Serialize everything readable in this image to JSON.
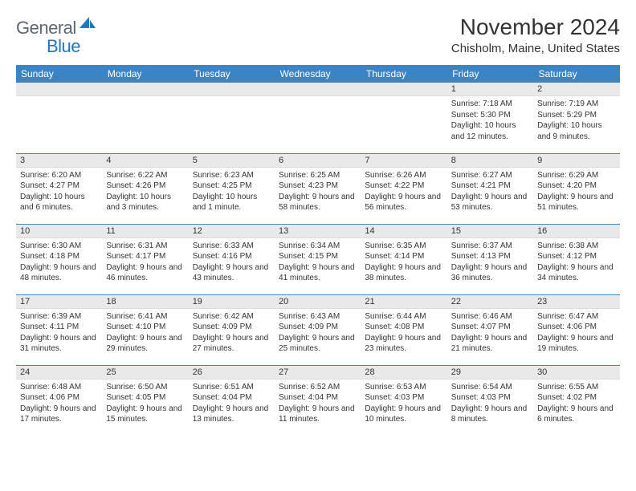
{
  "logo": {
    "text1": "General",
    "text2": "Blue"
  },
  "title": "November 2024",
  "location": "Chisholm, Maine, United States",
  "colors": {
    "header_bg": "#3b84c4",
    "header_text": "#ffffff",
    "daynum_bg": "#e9e9e9",
    "border": "#3b84c4",
    "logo_gray": "#5a6770",
    "logo_blue": "#2176bd"
  },
  "weekdays": [
    "Sunday",
    "Monday",
    "Tuesday",
    "Wednesday",
    "Thursday",
    "Friday",
    "Saturday"
  ],
  "weeks": [
    [
      {
        "day": "",
        "sunrise": "",
        "sunset": "",
        "daylight": ""
      },
      {
        "day": "",
        "sunrise": "",
        "sunset": "",
        "daylight": ""
      },
      {
        "day": "",
        "sunrise": "",
        "sunset": "",
        "daylight": ""
      },
      {
        "day": "",
        "sunrise": "",
        "sunset": "",
        "daylight": ""
      },
      {
        "day": "",
        "sunrise": "",
        "sunset": "",
        "daylight": ""
      },
      {
        "day": "1",
        "sunrise": "Sunrise: 7:18 AM",
        "sunset": "Sunset: 5:30 PM",
        "daylight": "Daylight: 10 hours and 12 minutes."
      },
      {
        "day": "2",
        "sunrise": "Sunrise: 7:19 AM",
        "sunset": "Sunset: 5:29 PM",
        "daylight": "Daylight: 10 hours and 9 minutes."
      }
    ],
    [
      {
        "day": "3",
        "sunrise": "Sunrise: 6:20 AM",
        "sunset": "Sunset: 4:27 PM",
        "daylight": "Daylight: 10 hours and 6 minutes."
      },
      {
        "day": "4",
        "sunrise": "Sunrise: 6:22 AM",
        "sunset": "Sunset: 4:26 PM",
        "daylight": "Daylight: 10 hours and 3 minutes."
      },
      {
        "day": "5",
        "sunrise": "Sunrise: 6:23 AM",
        "sunset": "Sunset: 4:25 PM",
        "daylight": "Daylight: 10 hours and 1 minute."
      },
      {
        "day": "6",
        "sunrise": "Sunrise: 6:25 AM",
        "sunset": "Sunset: 4:23 PM",
        "daylight": "Daylight: 9 hours and 58 minutes."
      },
      {
        "day": "7",
        "sunrise": "Sunrise: 6:26 AM",
        "sunset": "Sunset: 4:22 PM",
        "daylight": "Daylight: 9 hours and 56 minutes."
      },
      {
        "day": "8",
        "sunrise": "Sunrise: 6:27 AM",
        "sunset": "Sunset: 4:21 PM",
        "daylight": "Daylight: 9 hours and 53 minutes."
      },
      {
        "day": "9",
        "sunrise": "Sunrise: 6:29 AM",
        "sunset": "Sunset: 4:20 PM",
        "daylight": "Daylight: 9 hours and 51 minutes."
      }
    ],
    [
      {
        "day": "10",
        "sunrise": "Sunrise: 6:30 AM",
        "sunset": "Sunset: 4:18 PM",
        "daylight": "Daylight: 9 hours and 48 minutes."
      },
      {
        "day": "11",
        "sunrise": "Sunrise: 6:31 AM",
        "sunset": "Sunset: 4:17 PM",
        "daylight": "Daylight: 9 hours and 46 minutes."
      },
      {
        "day": "12",
        "sunrise": "Sunrise: 6:33 AM",
        "sunset": "Sunset: 4:16 PM",
        "daylight": "Daylight: 9 hours and 43 minutes."
      },
      {
        "day": "13",
        "sunrise": "Sunrise: 6:34 AM",
        "sunset": "Sunset: 4:15 PM",
        "daylight": "Daylight: 9 hours and 41 minutes."
      },
      {
        "day": "14",
        "sunrise": "Sunrise: 6:35 AM",
        "sunset": "Sunset: 4:14 PM",
        "daylight": "Daylight: 9 hours and 38 minutes."
      },
      {
        "day": "15",
        "sunrise": "Sunrise: 6:37 AM",
        "sunset": "Sunset: 4:13 PM",
        "daylight": "Daylight: 9 hours and 36 minutes."
      },
      {
        "day": "16",
        "sunrise": "Sunrise: 6:38 AM",
        "sunset": "Sunset: 4:12 PM",
        "daylight": "Daylight: 9 hours and 34 minutes."
      }
    ],
    [
      {
        "day": "17",
        "sunrise": "Sunrise: 6:39 AM",
        "sunset": "Sunset: 4:11 PM",
        "daylight": "Daylight: 9 hours and 31 minutes."
      },
      {
        "day": "18",
        "sunrise": "Sunrise: 6:41 AM",
        "sunset": "Sunset: 4:10 PM",
        "daylight": "Daylight: 9 hours and 29 minutes."
      },
      {
        "day": "19",
        "sunrise": "Sunrise: 6:42 AM",
        "sunset": "Sunset: 4:09 PM",
        "daylight": "Daylight: 9 hours and 27 minutes."
      },
      {
        "day": "20",
        "sunrise": "Sunrise: 6:43 AM",
        "sunset": "Sunset: 4:09 PM",
        "daylight": "Daylight: 9 hours and 25 minutes."
      },
      {
        "day": "21",
        "sunrise": "Sunrise: 6:44 AM",
        "sunset": "Sunset: 4:08 PM",
        "daylight": "Daylight: 9 hours and 23 minutes."
      },
      {
        "day": "22",
        "sunrise": "Sunrise: 6:46 AM",
        "sunset": "Sunset: 4:07 PM",
        "daylight": "Daylight: 9 hours and 21 minutes."
      },
      {
        "day": "23",
        "sunrise": "Sunrise: 6:47 AM",
        "sunset": "Sunset: 4:06 PM",
        "daylight": "Daylight: 9 hours and 19 minutes."
      }
    ],
    [
      {
        "day": "24",
        "sunrise": "Sunrise: 6:48 AM",
        "sunset": "Sunset: 4:06 PM",
        "daylight": "Daylight: 9 hours and 17 minutes."
      },
      {
        "day": "25",
        "sunrise": "Sunrise: 6:50 AM",
        "sunset": "Sunset: 4:05 PM",
        "daylight": "Daylight: 9 hours and 15 minutes."
      },
      {
        "day": "26",
        "sunrise": "Sunrise: 6:51 AM",
        "sunset": "Sunset: 4:04 PM",
        "daylight": "Daylight: 9 hours and 13 minutes."
      },
      {
        "day": "27",
        "sunrise": "Sunrise: 6:52 AM",
        "sunset": "Sunset: 4:04 PM",
        "daylight": "Daylight: 9 hours and 11 minutes."
      },
      {
        "day": "28",
        "sunrise": "Sunrise: 6:53 AM",
        "sunset": "Sunset: 4:03 PM",
        "daylight": "Daylight: 9 hours and 10 minutes."
      },
      {
        "day": "29",
        "sunrise": "Sunrise: 6:54 AM",
        "sunset": "Sunset: 4:03 PM",
        "daylight": "Daylight: 9 hours and 8 minutes."
      },
      {
        "day": "30",
        "sunrise": "Sunrise: 6:55 AM",
        "sunset": "Sunset: 4:02 PM",
        "daylight": "Daylight: 9 hours and 6 minutes."
      }
    ]
  ]
}
